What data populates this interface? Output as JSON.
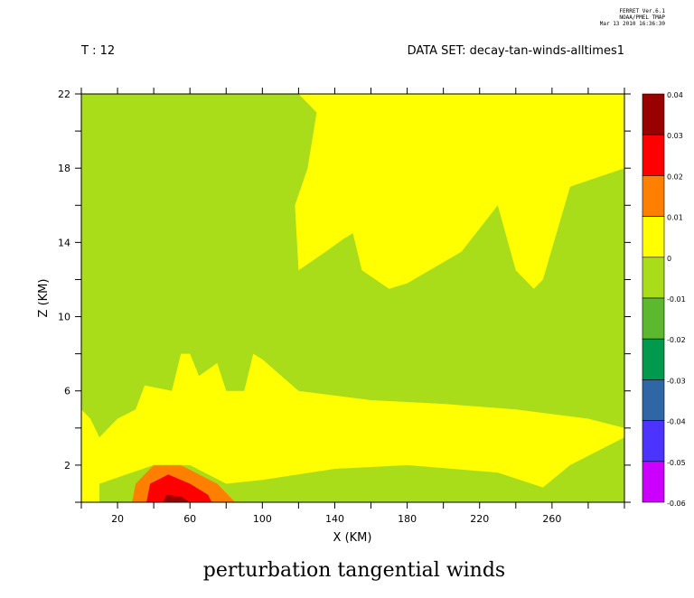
{
  "header": {
    "software": "FERRET Ver.6.1",
    "org": "NOAA/PMEL TMAP",
    "timestamp": "Mar 13 2010 16:36:30",
    "time_label": "T : 12",
    "dataset_label": "DATA SET: decay-tan-winds-alltimes1"
  },
  "colors": {
    "levels": [
      "#cc00ff",
      "#4d33ff",
      "#2e66a6",
      "#00994d",
      "#5cb82e",
      "#aadd19",
      "#ffff00",
      "#ff8000",
      "#ff0000",
      "#990000"
    ],
    "frame": "#000000",
    "background": "#ffffff"
  },
  "chart_data": {
    "type": "heatmap",
    "title": "perturbation tangential winds",
    "xlabel": "X (KM)",
    "ylabel": "Z (KM)",
    "xlim": [
      0,
      300
    ],
    "ylim": [
      0,
      22
    ],
    "x_ticks": [
      "20",
      "60",
      "100",
      "140",
      "180",
      "220",
      "260"
    ],
    "y_ticks": [
      "2",
      "6",
      "10",
      "14",
      "18",
      "22"
    ],
    "colorbar": {
      "labels": [
        "0.04",
        "0.03",
        "0.02",
        "0.01",
        "0",
        "-0.01",
        "-0.02",
        "-0.03",
        "-0.04",
        "-0.05",
        "-0.06"
      ],
      "levels_min_max": [
        -0.06,
        0.04
      ]
    },
    "regions": [
      {
        "level": "0 to 0.01",
        "description": "lower-left yellow band",
        "points": [
          [
            0,
            0
          ],
          [
            10,
            0
          ],
          [
            10,
            1
          ],
          [
            40,
            2
          ],
          [
            60,
            2
          ],
          [
            80,
            1
          ],
          [
            100,
            1.2
          ],
          [
            140,
            1.8
          ],
          [
            180,
            2
          ],
          [
            230,
            1.6
          ],
          [
            255,
            0.8
          ],
          [
            270,
            2
          ],
          [
            300,
            3.5
          ],
          [
            300,
            4
          ],
          [
            280,
            4.5
          ],
          [
            240,
            5
          ],
          [
            200,
            5.3
          ],
          [
            160,
            5.5
          ],
          [
            120,
            6
          ],
          [
            100,
            7.7
          ],
          [
            95,
            8
          ],
          [
            90,
            6
          ],
          [
            80,
            6
          ],
          [
            75,
            7.5
          ],
          [
            65,
            6.8
          ],
          [
            60,
            8
          ],
          [
            55,
            8
          ],
          [
            50,
            6
          ],
          [
            35,
            6.3
          ],
          [
            30,
            5
          ],
          [
            20,
            4.5
          ],
          [
            10,
            3.5
          ],
          [
            5,
            4.5
          ],
          [
            0,
            5
          ]
        ]
      },
      {
        "level": "0 to 0.01",
        "description": "upper-right yellow region",
        "points": [
          [
            110,
            22
          ],
          [
            130,
            22
          ],
          [
            160,
            22
          ],
          [
            200,
            22
          ],
          [
            300,
            22
          ],
          [
            300,
            18
          ],
          [
            270,
            17
          ],
          [
            255,
            12
          ],
          [
            250,
            11.5
          ],
          [
            240,
            12.5
          ],
          [
            230,
            16
          ],
          [
            210,
            13.5
          ],
          [
            180,
            11.8
          ],
          [
            170,
            11.5
          ],
          [
            155,
            12.5
          ],
          [
            150,
            14.5
          ],
          [
            145,
            14.2
          ],
          [
            135,
            13.5
          ],
          [
            120,
            12.5
          ],
          [
            118,
            16
          ],
          [
            125,
            18
          ],
          [
            130,
            21
          ],
          [
            120,
            22
          ]
        ]
      },
      {
        "level": "0.01 to 0.02",
        "points": [
          [
            28,
            0
          ],
          [
            30,
            1
          ],
          [
            40,
            2
          ],
          [
            55,
            2
          ],
          [
            75,
            1
          ],
          [
            85,
            0
          ]
        ]
      },
      {
        "level": "0.02 to 0.03",
        "points": [
          [
            36,
            0
          ],
          [
            38,
            1
          ],
          [
            48,
            1.5
          ],
          [
            60,
            1
          ],
          [
            70,
            0.4
          ],
          [
            72,
            0
          ]
        ]
      },
      {
        "level": "0.03 to 0.04",
        "points": [
          [
            45,
            0
          ],
          [
            47,
            0.4
          ],
          [
            55,
            0.3
          ],
          [
            60,
            0
          ]
        ]
      }
    ]
  }
}
